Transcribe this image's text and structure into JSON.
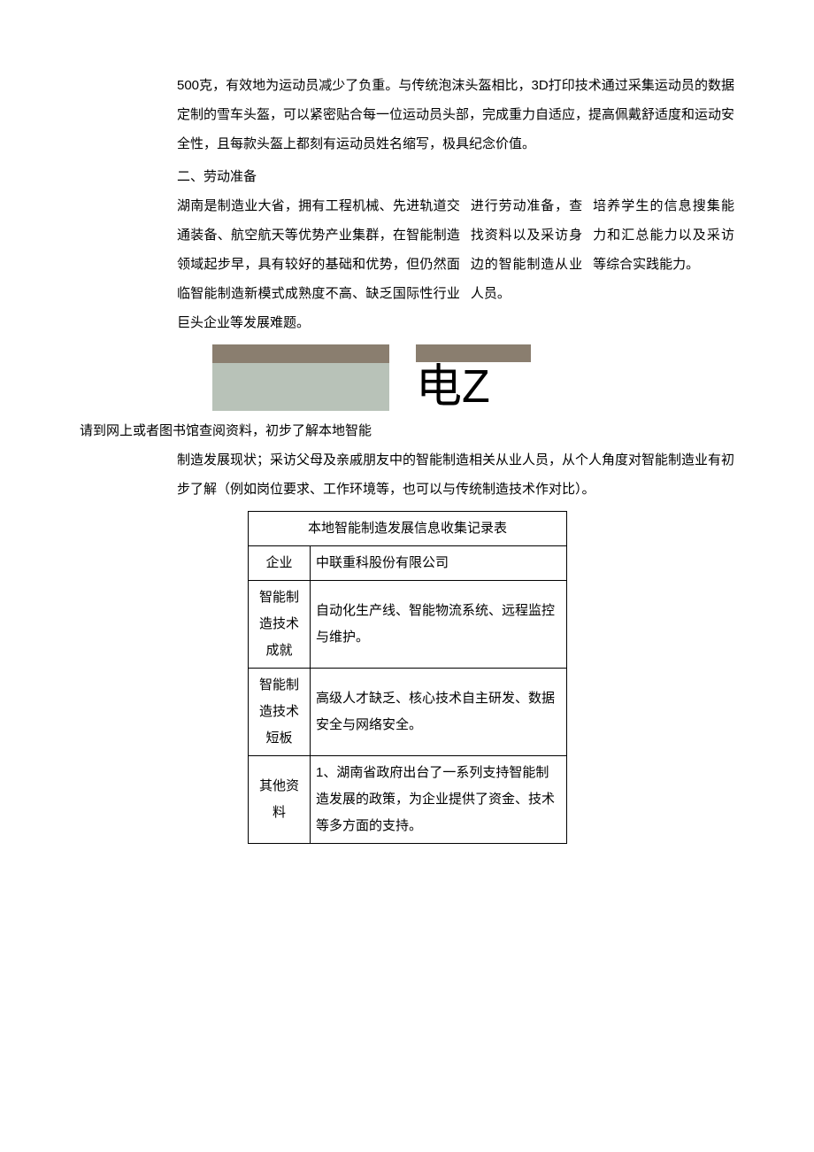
{
  "paragraph1": "500克，有效地为运动员减少了负重。与传统泡沫头盔相比，3D打印技术通过采集运动员的数据定制的雪车头盔，可以紧密贴合每一位运动员头部，完成重力自适应，提高佩戴舒适度和运动安全性，且每款头盔上都刻有运动员姓名缩写，极具纪念价值。",
  "section2_title": "二、劳动准备",
  "col1_text": "湖南是制造业大省，拥有工程机械、先进轨道交通装备、航空航天等优势产业集群，在智能制造领域起步早，具有较好的基础和优势，但仍然面临智能制造新模式成熟度不高、缺乏国际性行业巨头企业等发展难题。",
  "col2_text": "进行劳动准备，查找资料以及采访身边的智能制造从业人员。",
  "col3_text": "培养学生的信息搜集能力和汇总能力以及采访等综合实践能力。",
  "big_chars": "电Z",
  "instruction_left": "请到网上或者图书馆查阅资料，初步了解本地智能",
  "instruction_cont": "制造发展现状；采访父母及亲戚朋友中的智能制造相关从业人员，从个人角度对智能制造业有初步了解（例如岗位要求、工作环境等，也可以与传统制造技术作对比）。",
  "table_title": "本地智能制造发展信息收集记录表",
  "rows": {
    "r1_label": "企业",
    "r1_value": "中联重科股份有限公司",
    "r2_label": "智能制造技术成就",
    "r2_value": "自动化生产线、智能物流系统、远程监控与维护。",
    "r3_label": "智能制造技术短板",
    "r3_value": "高级人才缺乏、核心技术自主研发、数据安全与网络安全。",
    "r4_label": "其他资料",
    "r4_value": "1、湖南省政府出台了一系列支持智能制造发展的政策，为企业提供了资金、技术等多方面的支持。"
  },
  "colors": {
    "text": "#000000",
    "border": "#000000",
    "placeholder_top": "#8a7e6f",
    "placeholder_bottom": "#b8c2b8"
  }
}
